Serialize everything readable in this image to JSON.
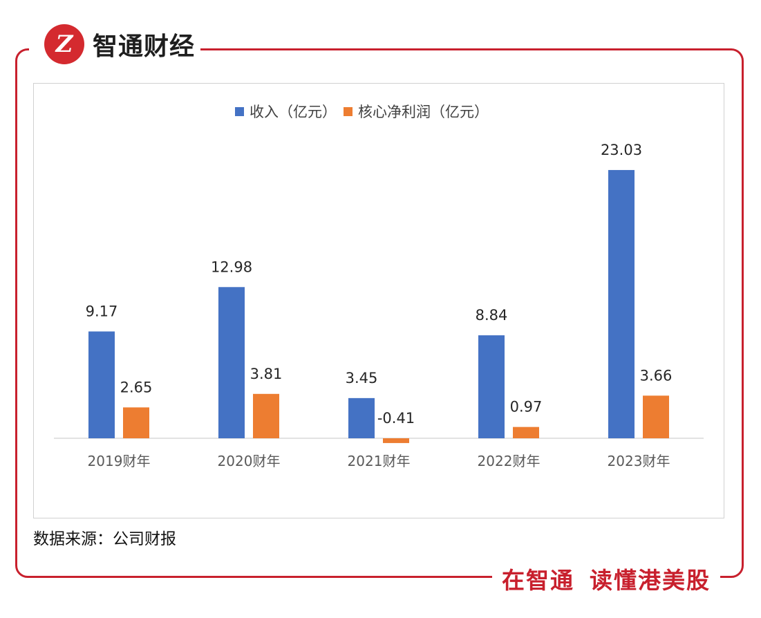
{
  "brand": {
    "logo_text": "智通财经",
    "logo_mark": "Z",
    "slogan_left": "在智通",
    "slogan_right": "读懂港美股",
    "accent_color": "#c8202d"
  },
  "source_note": "数据来源：公司财报",
  "chart_data": {
    "type": "bar",
    "title": "",
    "xlabel": "",
    "ylabel": "",
    "categories": [
      "2019财年",
      "2020财年",
      "2021财年",
      "2022财年",
      "2023财年"
    ],
    "series": [
      {
        "name": "收入（亿元）",
        "color": "#4472c4",
        "values": [
          9.17,
          12.98,
          3.45,
          8.84,
          23.03
        ],
        "labels": [
          "9.17",
          "12.98",
          "3.45",
          "8.84",
          "23.03"
        ]
      },
      {
        "name": "核心净利润（亿元）",
        "color": "#ed7d31",
        "values": [
          2.65,
          3.81,
          -0.41,
          0.97,
          3.66
        ],
        "labels": [
          "2.65",
          "3.81",
          "-0.41",
          "0.97",
          "3.66"
        ]
      }
    ],
    "ylim": [
      -0.5,
      23.5
    ],
    "grid": false,
    "legend_position": "top-center"
  }
}
